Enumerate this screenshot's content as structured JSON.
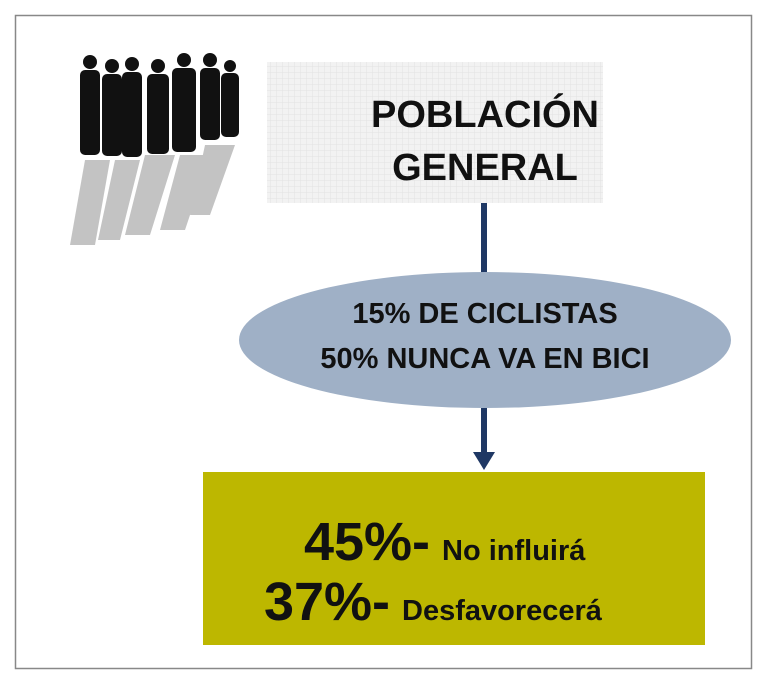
{
  "header": {
    "title_lines": [
      "POBLACIÓN",
      "GENERAL"
    ]
  },
  "ellipse": {
    "lines": [
      "15% DE CICLISTAS",
      "50% NUNCA VA EN BICI"
    ]
  },
  "result": {
    "rows": [
      {
        "value": "45%-",
        "label": "No influirá"
      },
      {
        "value": "37%-",
        "label": "Desfavorecerá"
      }
    ]
  }
}
